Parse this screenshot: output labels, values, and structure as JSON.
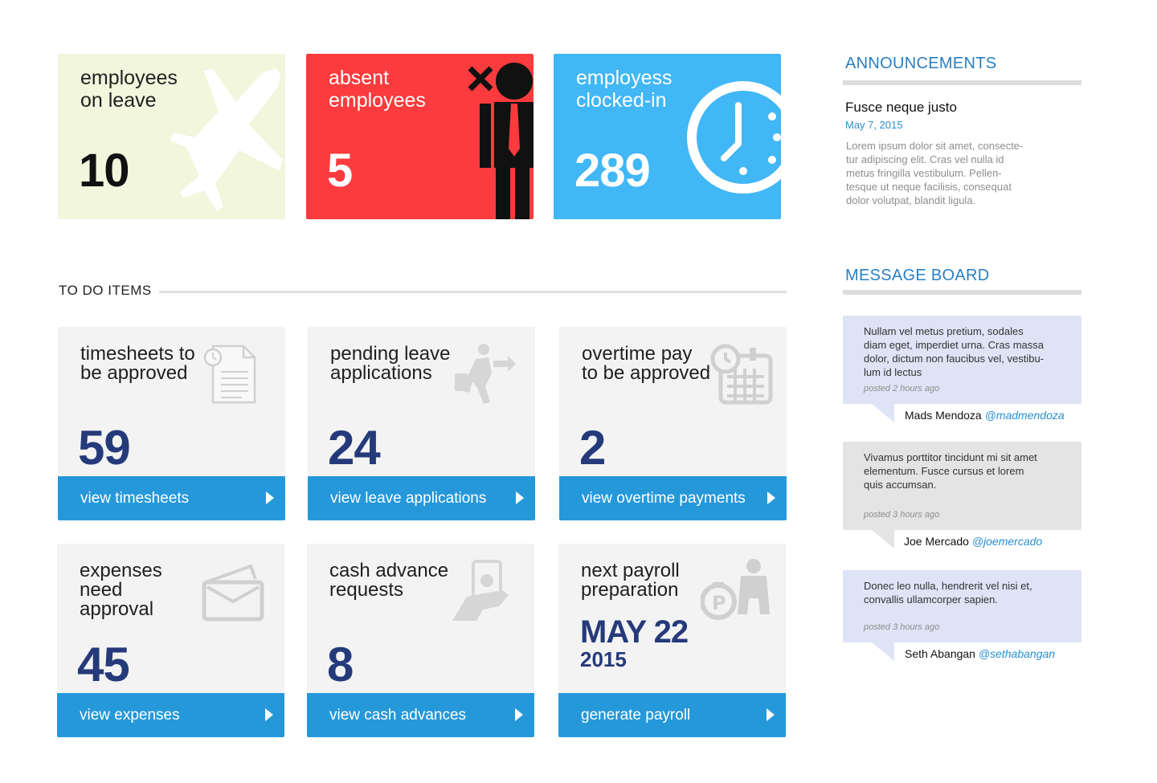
{
  "stats": {
    "leave": {
      "label": "employees\non leave",
      "value": "10"
    },
    "absent": {
      "label": "absent\nemployees",
      "value": "5"
    },
    "clocked": {
      "label": "employess\nclocked-in",
      "value": "289"
    }
  },
  "todo": {
    "title": "TO DO ITEMS",
    "cards": [
      {
        "title": "timesheets to\nbe approved",
        "value": "59",
        "button": "view timesheets",
        "icon": "document-clock-icon"
      },
      {
        "title": "pending leave\napplications",
        "value": "24",
        "button": "view leave applications",
        "icon": "running-person-icon"
      },
      {
        "title": "overtime pay\nto be approved",
        "value": "2",
        "button": "view overtime payments",
        "icon": "calendar-clock-icon"
      },
      {
        "title": "expenses\nneed\napproval",
        "value": "45",
        "button": "view expenses",
        "icon": "wallet-icon"
      },
      {
        "title": "cash advance\nrequests",
        "value": "8",
        "button": "view cash advances",
        "icon": "hand-money-icon"
      },
      {
        "title": "next payroll\npreparation",
        "date": "MAY 22",
        "year": "2015",
        "button": "generate payroll",
        "icon": "peso-bag-person-icon"
      }
    ]
  },
  "announcements": {
    "title": "ANNOUNCEMENTS",
    "item": {
      "headline": "Fusce neque justo",
      "date": "May 7, 2015",
      "body": "Lorem ipsum dolor sit amet, consecte-\ntur adipiscing elit. Cras vel nulla id\nmetus fringilla vestibulum. Pellen-\ntesque ut neque facilisis, consequat\ndolor volutpat, blandit ligula."
    }
  },
  "message_board": {
    "title": "MESSAGE BOARD",
    "messages": [
      {
        "text": "Nullam vel metus pretium, sodales\ndiam eget, imperdiet urna. Cras massa\ndolor, dictum non faucibus vel, vestibu-\nlum id lectus",
        "posted": "posted 2 hours ago",
        "author": "Mads Mendoza",
        "handle": "@madmendoza",
        "color": "#dfe3f6"
      },
      {
        "text": "Vivamus porttitor tincidunt mi sit amet\nelementum. Fusce cursus et lorem\nquis accumsan.",
        "posted": "posted 3 hours ago",
        "author": "Joe Mercado",
        "handle": "@joemercado",
        "color": "#e4e4e4"
      },
      {
        "text": "Donec leo nulla, hendrerit vel nisi et,\nconvallis ullamcorper sapien.",
        "posted": "posted 3 hours ago",
        "author": "Seth Abangan",
        "handle": "@sethabangan",
        "color": "#dfe3f6"
      }
    ]
  },
  "colors": {
    "leave_tile": "#f1f6dc",
    "absent_tile": "#fb3b3d",
    "clocked_tile": "#41b7f5",
    "card_button": "#2598da",
    "card_number": "#253a7a",
    "side_title": "#2a7fc0"
  }
}
